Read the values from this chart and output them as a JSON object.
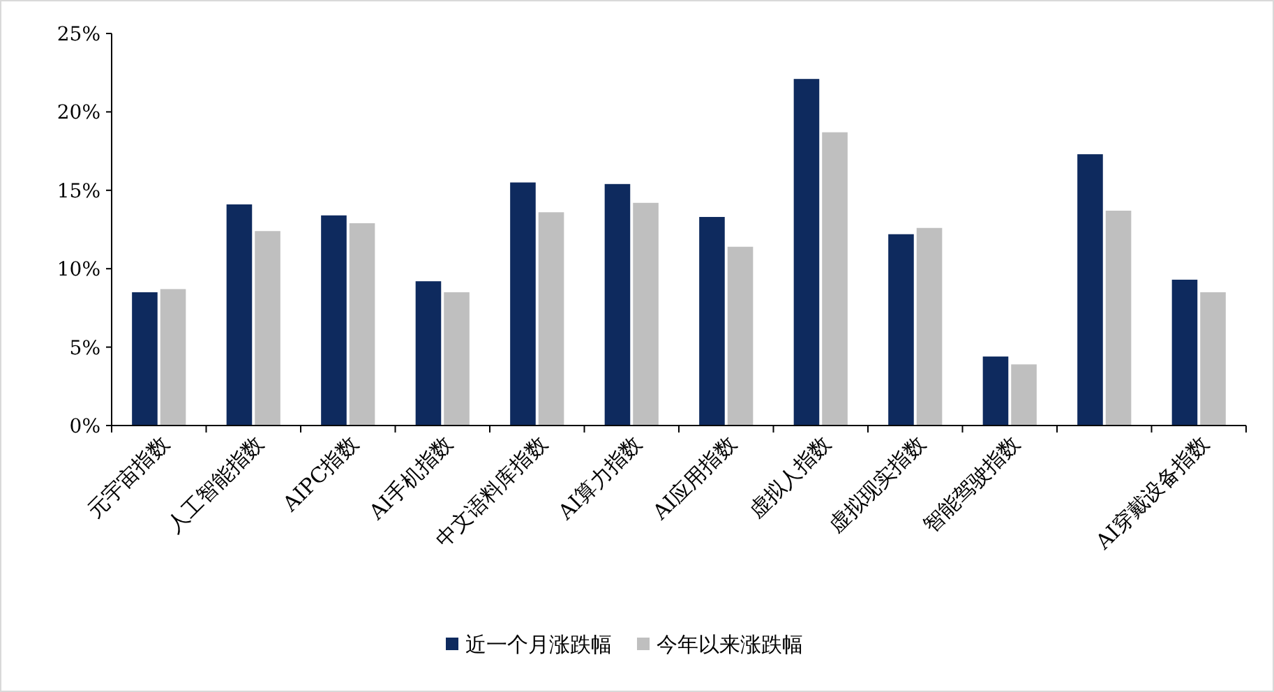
{
  "chart_data": {
    "type": "bar",
    "categories": [
      "元宇宙指数",
      "人工智能指数",
      "AIPC指数",
      "AI手机指数",
      "中文语料库指数",
      "AI算力指数",
      "AI应用指数",
      "虚拟人指数",
      "虚拟现实指数",
      "智能驾驶指数",
      null,
      "AI穿戴设备指数"
    ],
    "series": [
      {
        "name": "近一个月涨跌幅",
        "color": "#0e2a5e",
        "values": [
          8.5,
          14.1,
          13.4,
          9.2,
          15.5,
          15.4,
          13.3,
          22.1,
          12.2,
          4.4,
          17.3,
          9.3
        ]
      },
      {
        "name": "今年以来涨跌幅",
        "color": "#bfbfbf",
        "values": [
          8.7,
          12.4,
          12.9,
          8.5,
          13.6,
          14.2,
          11.4,
          18.7,
          12.6,
          3.9,
          13.7,
          8.5
        ]
      }
    ],
    "ylim": [
      0,
      25
    ],
    "yticks": [
      {
        "value": 0,
        "label": "0%"
      },
      {
        "value": 5,
        "label": "5%"
      },
      {
        "value": 10,
        "label": "10%"
      },
      {
        "value": 15,
        "label": "15%"
      },
      {
        "value": 20,
        "label": "20%"
      },
      {
        "value": 25,
        "label": "25%"
      }
    ],
    "legend": "bottom"
  }
}
